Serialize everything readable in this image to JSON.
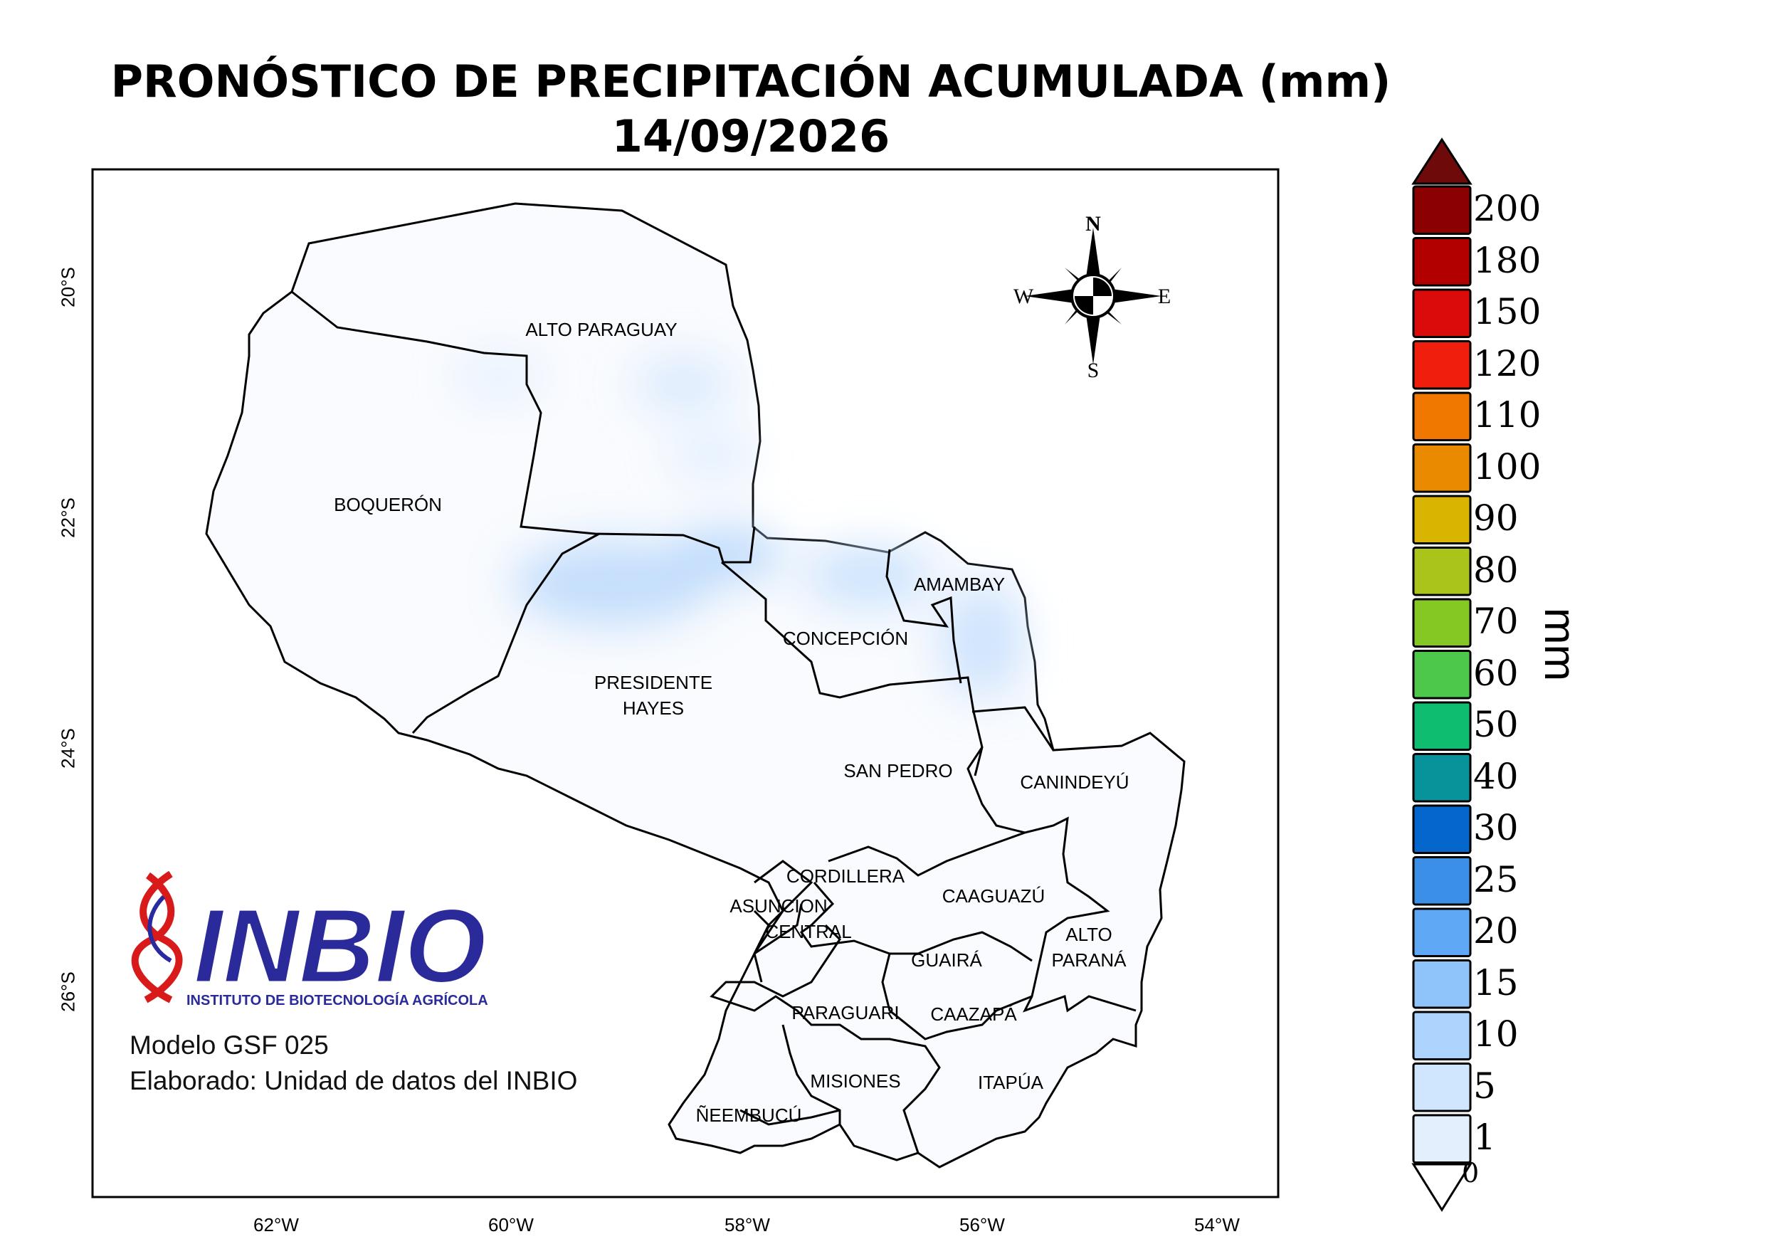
{
  "title": {
    "line1": "PRONÓSTICO DE PRECIPITACIÓN ACUMULADA (mm)",
    "line2": "14/09/2026"
  },
  "axes": {
    "lat_ticks": [
      "20°S",
      "22°S",
      "24°S",
      "26°S"
    ],
    "lon_ticks": [
      "62°W",
      "60°W",
      "58°W",
      "56°W",
      "54°W"
    ]
  },
  "departments": {
    "alto_paraguay": "ALTO PARAGUAY",
    "boqueron": "BOQUERÓN",
    "presidente_hayes_1": "PRESIDENTE",
    "presidente_hayes_2": "HAYES",
    "concepcion": "CONCEPCIÓN",
    "amambay": "AMAMBAY",
    "san_pedro": "SAN PEDRO",
    "canindeyu": "CANINDEYÚ",
    "cordillera": "CORDILLERA",
    "asuncion": "ASUNCION",
    "central": "CENTRAL",
    "caaguazu": "CAAGUAZÚ",
    "alto_parana_1": "ALTO",
    "alto_parana_2": "PARANÁ",
    "guaira": "GUAIRÁ",
    "paraguari": "PARAGUARI",
    "caazapa": "CAAZAPÁ",
    "misiones": "MISIONES",
    "itapua": "ITAPÚA",
    "neembucu": "ÑEEMBUCÚ"
  },
  "compass": {
    "n": "N",
    "s": "S",
    "e": "E",
    "w": "W"
  },
  "logo": {
    "name": "INBIO",
    "subtitle": "INSTITUTO DE BIOTECNOLOGÍA AGRÍCOLA"
  },
  "credits": {
    "model": "Modelo GSF 025",
    "made_by": "Elaborado: Unidad de datos del INBIO"
  },
  "legend": {
    "unit": "mm",
    "levels": [
      {
        "label": "200",
        "color": "#8b0000"
      },
      {
        "label": "180",
        "color": "#b20000"
      },
      {
        "label": "150",
        "color": "#d90b0b"
      },
      {
        "label": "120",
        "color": "#f01e0c"
      },
      {
        "label": "110",
        "color": "#f07800"
      },
      {
        "label": "100",
        "color": "#e98a00"
      },
      {
        "label": "90",
        "color": "#d9b400"
      },
      {
        "label": "80",
        "color": "#aac41c"
      },
      {
        "label": "70",
        "color": "#86c823"
      },
      {
        "label": "60",
        "color": "#4dc84a"
      },
      {
        "label": "50",
        "color": "#0fbd70"
      },
      {
        "label": "40",
        "color": "#08939a"
      },
      {
        "label": "30",
        "color": "#0566cc"
      },
      {
        "label": "25",
        "color": "#3b8fe6"
      },
      {
        "label": "20",
        "color": "#5fa8f5"
      },
      {
        "label": "15",
        "color": "#8fc4fb"
      },
      {
        "label": "10",
        "color": "#acd4fc"
      },
      {
        "label": "5",
        "color": "#cfe6fe"
      },
      {
        "label": "1",
        "color": "#e4effd"
      }
    ],
    "over_color": "#6e0a0a",
    "zero_label": "0"
  }
}
